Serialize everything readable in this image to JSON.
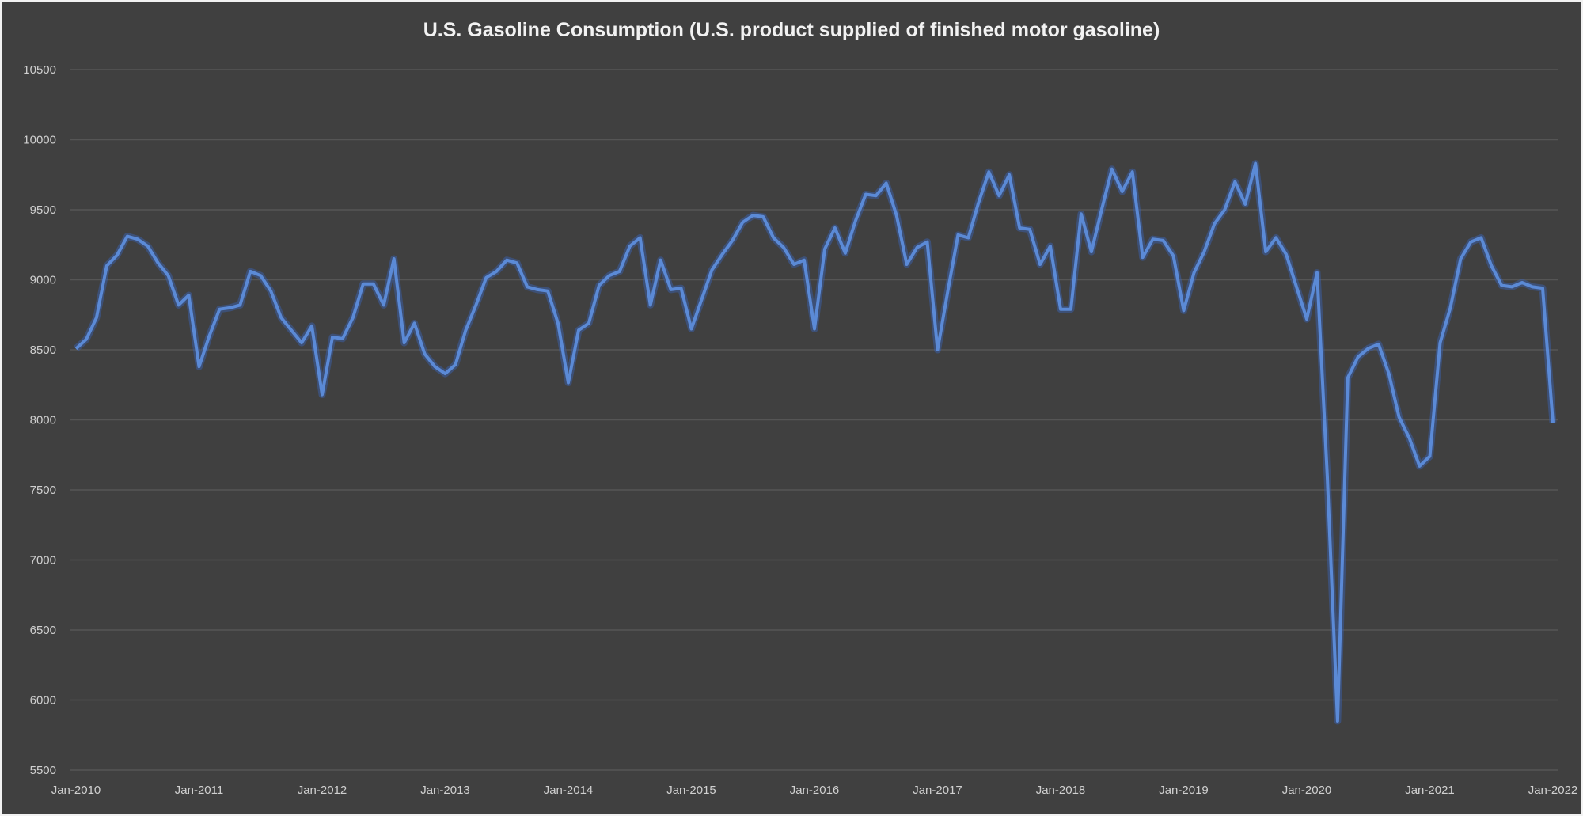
{
  "chart_data": {
    "type": "line",
    "title": "U.S. Gasoline Consumption (U.S. product supplied of finished motor gasoline)",
    "xlabel": "",
    "ylabel": "",
    "ylim": [
      5500,
      10500
    ],
    "yticks": [
      "10500",
      "10000",
      "9500",
      "9000",
      "8500",
      "8000",
      "7500",
      "7000",
      "6500",
      "6000",
      "5500"
    ],
    "xticks": [
      "Jan-2010",
      "Jan-2011",
      "Jan-2012",
      "Jan-2013",
      "Jan-2014",
      "Jan-2015",
      "Jan-2016",
      "Jan-2017",
      "Jan-2018",
      "Jan-2019",
      "Jan-2020",
      "Jan-2021",
      "Jan-2022"
    ],
    "x_start": "Jan-2010",
    "x_end": "Jan-2022",
    "x_frequency": "monthly",
    "grid": true,
    "legend": "none",
    "colors": {
      "background": "#404040",
      "line": "#5b8ad6",
      "grid": "#555555",
      "text": "#d0d0d0"
    },
    "series": [
      {
        "values": [
          8508,
          8575,
          8730,
          9100,
          9175,
          9310,
          9290,
          9240,
          9120,
          9030,
          8820,
          8890,
          8380,
          8600,
          8790,
          8800,
          8820,
          9060,
          9030,
          8920,
          8730,
          8640,
          8550,
          8670,
          8180,
          8590,
          8580,
          8730,
          8970,
          8970,
          8820,
          9150,
          8550,
          8690,
          8470,
          8380,
          8330,
          8395,
          8640,
          8820,
          9015,
          9060,
          9140,
          9120,
          8950,
          8930,
          8920,
          8690,
          8265,
          8640,
          8690,
          8960,
          9030,
          9060,
          9240,
          9300,
          8820,
          9140,
          8930,
          8940,
          8650,
          8860,
          9070,
          9180,
          9280,
          9410,
          9460,
          9450,
          9300,
          9230,
          9110,
          9140,
          8650,
          9220,
          9370,
          9190,
          9420,
          9610,
          9600,
          9690,
          9460,
          9110,
          9230,
          9270,
          8500,
          8920,
          9320,
          9300,
          9550,
          9770,
          9600,
          9750,
          9370,
          9360,
          9110,
          9240,
          8790,
          8790,
          9470,
          9200,
          9500,
          9790,
          9630,
          9770,
          9160,
          9290,
          9280,
          9170,
          8780,
          9050,
          9200,
          9400,
          9500,
          9700,
          9540,
          9830,
          9200,
          9300,
          9180,
          8950,
          8720,
          9050,
          7600,
          5850,
          8300,
          8450,
          8510,
          8540,
          8330,
          8020,
          7870,
          7670,
          7740,
          8550,
          8800,
          9150,
          9270,
          9300,
          9100,
          8960,
          8950,
          8980,
          8950,
          8940,
          7980
        ]
      }
    ]
  }
}
